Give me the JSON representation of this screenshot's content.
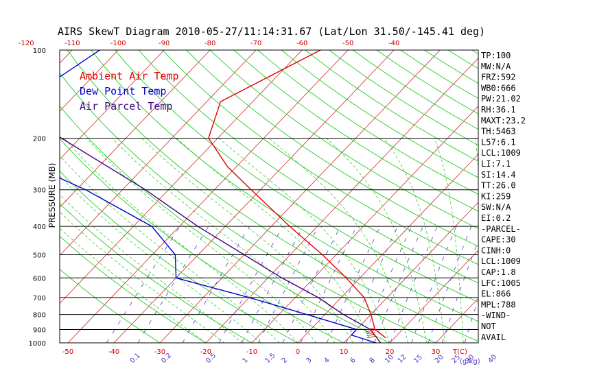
{
  "chart_data": {
    "type": "line",
    "title": "AIRS SkewT Diagram 2010-05-27/11:14:31.67 (Lat/Lon 31.50/-145.41 deg)",
    "ylabel": "PRESSURE (MB)",
    "y_scale": "log",
    "ylim": [
      1000,
      100
    ],
    "xlim": [
      -50,
      45
    ],
    "pressure_ticks": [
      100,
      200,
      300,
      400,
      500,
      600,
      700,
      800,
      900,
      1000
    ],
    "bottom_temp_ticks": [
      -50,
      -40,
      -30,
      -20,
      -10,
      0,
      10,
      20,
      30
    ],
    "top_temp_ticks": [
      -120,
      -110,
      -100,
      -90,
      -80,
      -70,
      -60,
      -50,
      -40
    ],
    "bottom_axis_label": "T(C)",
    "mixing_ratio_ticks": [
      "0.1",
      "0.2",
      "0.5",
      "1",
      "1.5",
      "2",
      "3",
      "4",
      "6",
      "8",
      "10",
      "12",
      "15",
      "20",
      "25",
      "30",
      "40"
    ],
    "mixing_ratio_label": "(g/kg)",
    "legend": [
      {
        "label": "Ambient Air Temp",
        "color": "#e00000"
      },
      {
        "label": "Dew Point Temp",
        "color": "#0000d0"
      },
      {
        "label": "Air Parcel Temp",
        "color": "#400080"
      }
    ],
    "series": [
      {
        "name": "Ambient Air Temp",
        "color": "#e00000",
        "points": [
          [
            100,
            -56
          ],
          [
            150,
            -67
          ],
          [
            200,
            -62
          ],
          [
            250,
            -52
          ],
          [
            300,
            -42
          ],
          [
            400,
            -26
          ],
          [
            500,
            -13
          ],
          [
            600,
            -3
          ],
          [
            700,
            5
          ],
          [
            800,
            10
          ],
          [
            900,
            14
          ],
          [
            960,
            18
          ]
        ]
      },
      {
        "name": "Dew Point Temp",
        "color": "#0000d0",
        "points": [
          [
            100,
            -104
          ],
          [
            150,
            -110
          ],
          [
            200,
            -106
          ],
          [
            250,
            -94
          ],
          [
            300,
            -78
          ],
          [
            400,
            -56
          ],
          [
            500,
            -45
          ],
          [
            600,
            -40
          ],
          [
            700,
            -20
          ],
          [
            800,
            -4
          ],
          [
            900,
            10
          ],
          [
            940,
            10
          ],
          [
            1000,
            17
          ]
        ]
      },
      {
        "name": "Air Parcel Temp",
        "color": "#400080",
        "points": [
          [
            100,
            -124
          ],
          [
            150,
            -112
          ],
          [
            200,
            -94
          ],
          [
            300,
            -65
          ],
          [
            400,
            -46
          ],
          [
            500,
            -30
          ],
          [
            600,
            -17
          ],
          [
            700,
            -5
          ],
          [
            800,
            4
          ],
          [
            900,
            13
          ],
          [
            1000,
            18
          ]
        ]
      }
    ],
    "grid": true,
    "isotherm_color": "#d04040",
    "dry_adiabat_color": "#22cc22",
    "moist_adiabat_color": "#33cc33",
    "mixing_ratio_color": "#6a4ad0"
  },
  "panel": {
    "lines": [
      "TP:100",
      "MW:N/A",
      "FRZ:592",
      "WB0:666",
      "PW:21.02",
      "RH:36.1",
      "MAXT:23.2",
      "TH:5463",
      "L57:6.1",
      "LCL:1009",
      "LI:7.1",
      "SI:14.4",
      "TT:26.0",
      "KI:259",
      "SW:N/A",
      "EI:0.2",
      "-PARCEL-",
      "CAPE:30",
      "CINH:0",
      "LCL:1009",
      "CAP:1.8",
      "LFC:1005",
      "EL:866",
      "MPL:788",
      "-WIND-",
      "NOT",
      "AVAIL"
    ]
  }
}
